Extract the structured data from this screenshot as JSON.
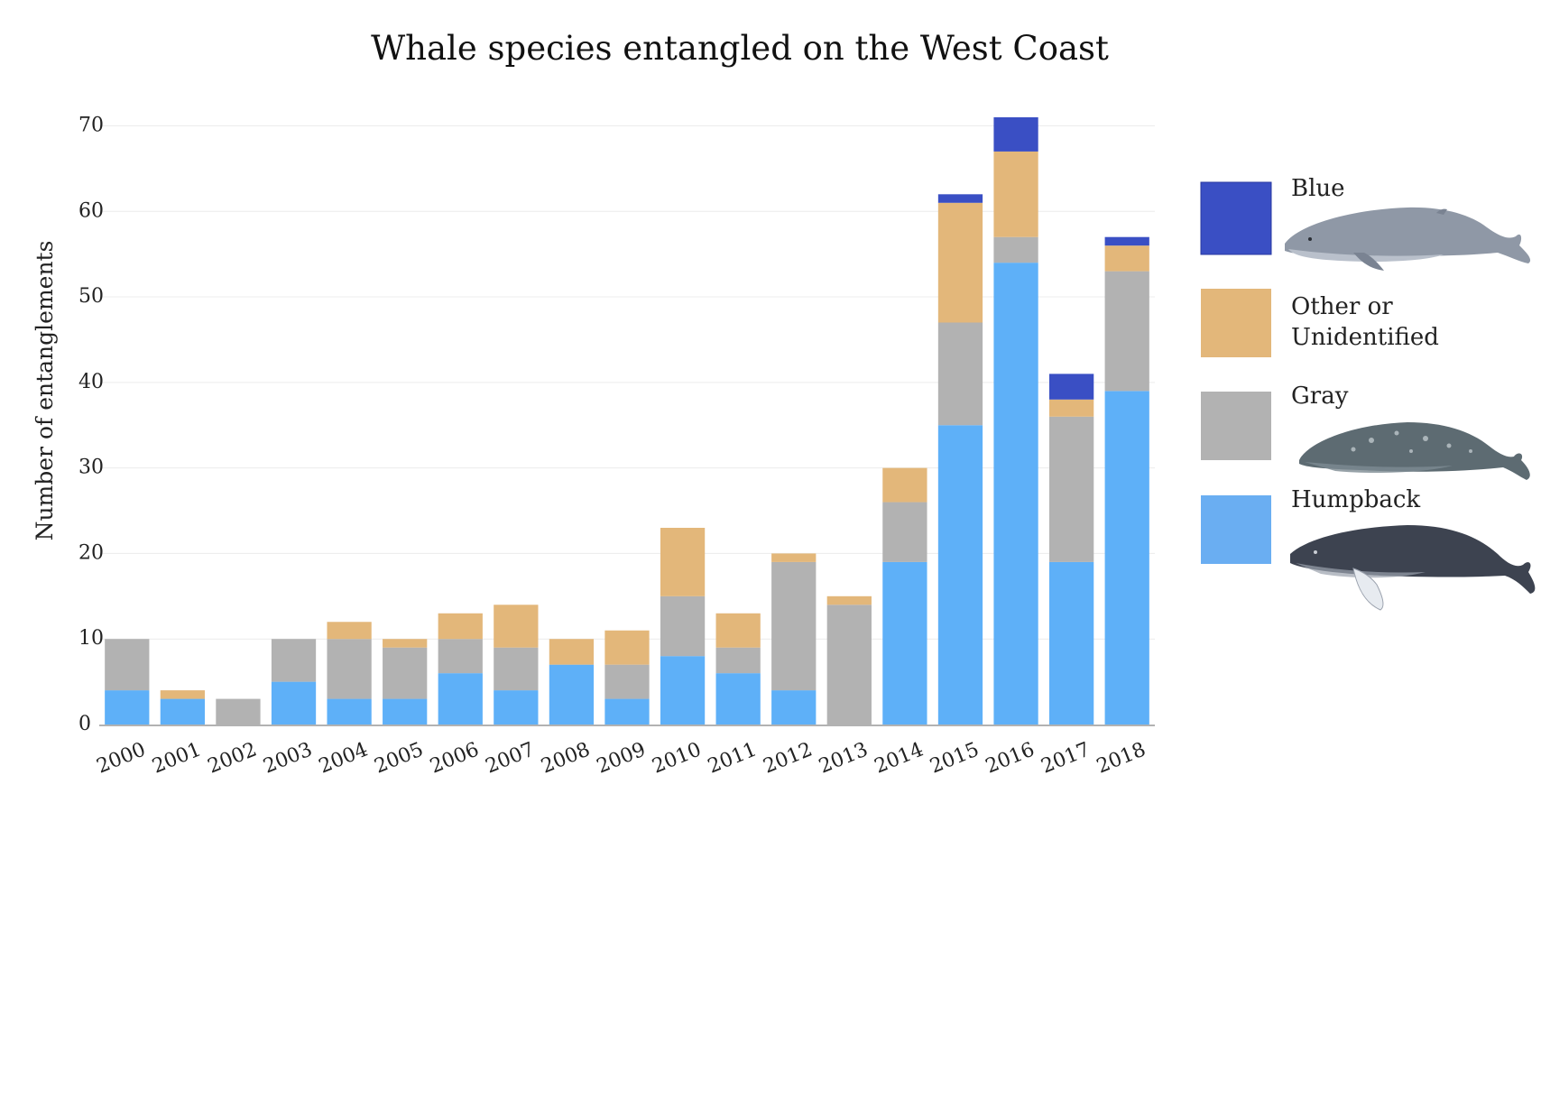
{
  "chart_data": {
    "type": "bar",
    "stacked": true,
    "title": "Whale species entangled on the West Coast",
    "xlabel": "",
    "ylabel": "Number of entanglements",
    "ylim": [
      0,
      71
    ],
    "yticks": [
      0,
      10,
      20,
      30,
      40,
      50,
      60,
      70
    ],
    "grid": true,
    "legend_placement": "right",
    "categories": [
      "2000",
      "2001",
      "2002",
      "2003",
      "2004",
      "2005",
      "2006",
      "2007",
      "2008",
      "2009",
      "2010",
      "2011",
      "2012",
      "2013",
      "2014",
      "2015",
      "2016",
      "2017",
      "2018"
    ],
    "series": [
      {
        "name": "Humpback",
        "color": "#5eb0f8",
        "values": [
          4,
          3,
          0,
          5,
          3,
          3,
          6,
          4,
          7,
          3,
          8,
          6,
          4,
          0,
          19,
          35,
          54,
          19,
          39
        ]
      },
      {
        "name": "Gray",
        "color": "#b2b2b2",
        "values": [
          6,
          0,
          3,
          5,
          7,
          6,
          4,
          5,
          0,
          4,
          7,
          3,
          15,
          14,
          7,
          12,
          3,
          17,
          14
        ]
      },
      {
        "name": "Other or Unidentified",
        "color": "#e3b77a",
        "values": [
          0,
          1,
          0,
          0,
          2,
          1,
          3,
          5,
          3,
          4,
          8,
          4,
          1,
          1,
          4,
          14,
          10,
          2,
          3
        ]
      },
      {
        "name": "Blue",
        "color": "#3a4fc4",
        "values": [
          0,
          0,
          0,
          0,
          0,
          0,
          0,
          0,
          0,
          0,
          0,
          0,
          0,
          0,
          0,
          1,
          4,
          3,
          1
        ]
      }
    ]
  },
  "legend": [
    {
      "label_lines": [
        "Blue"
      ],
      "color": "#3a4fc4",
      "icon": "blue-whale-icon"
    },
    {
      "label_lines": [
        "Other or",
        "Unidentified"
      ],
      "color": "#e3b77a",
      "icon": ""
    },
    {
      "label_lines": [
        "Gray"
      ],
      "color": "#b2b2b2",
      "icon": "gray-whale-icon"
    },
    {
      "label_lines": [
        "Humpback"
      ],
      "color": "#6aaef2",
      "icon": "humpback-whale-icon"
    }
  ]
}
